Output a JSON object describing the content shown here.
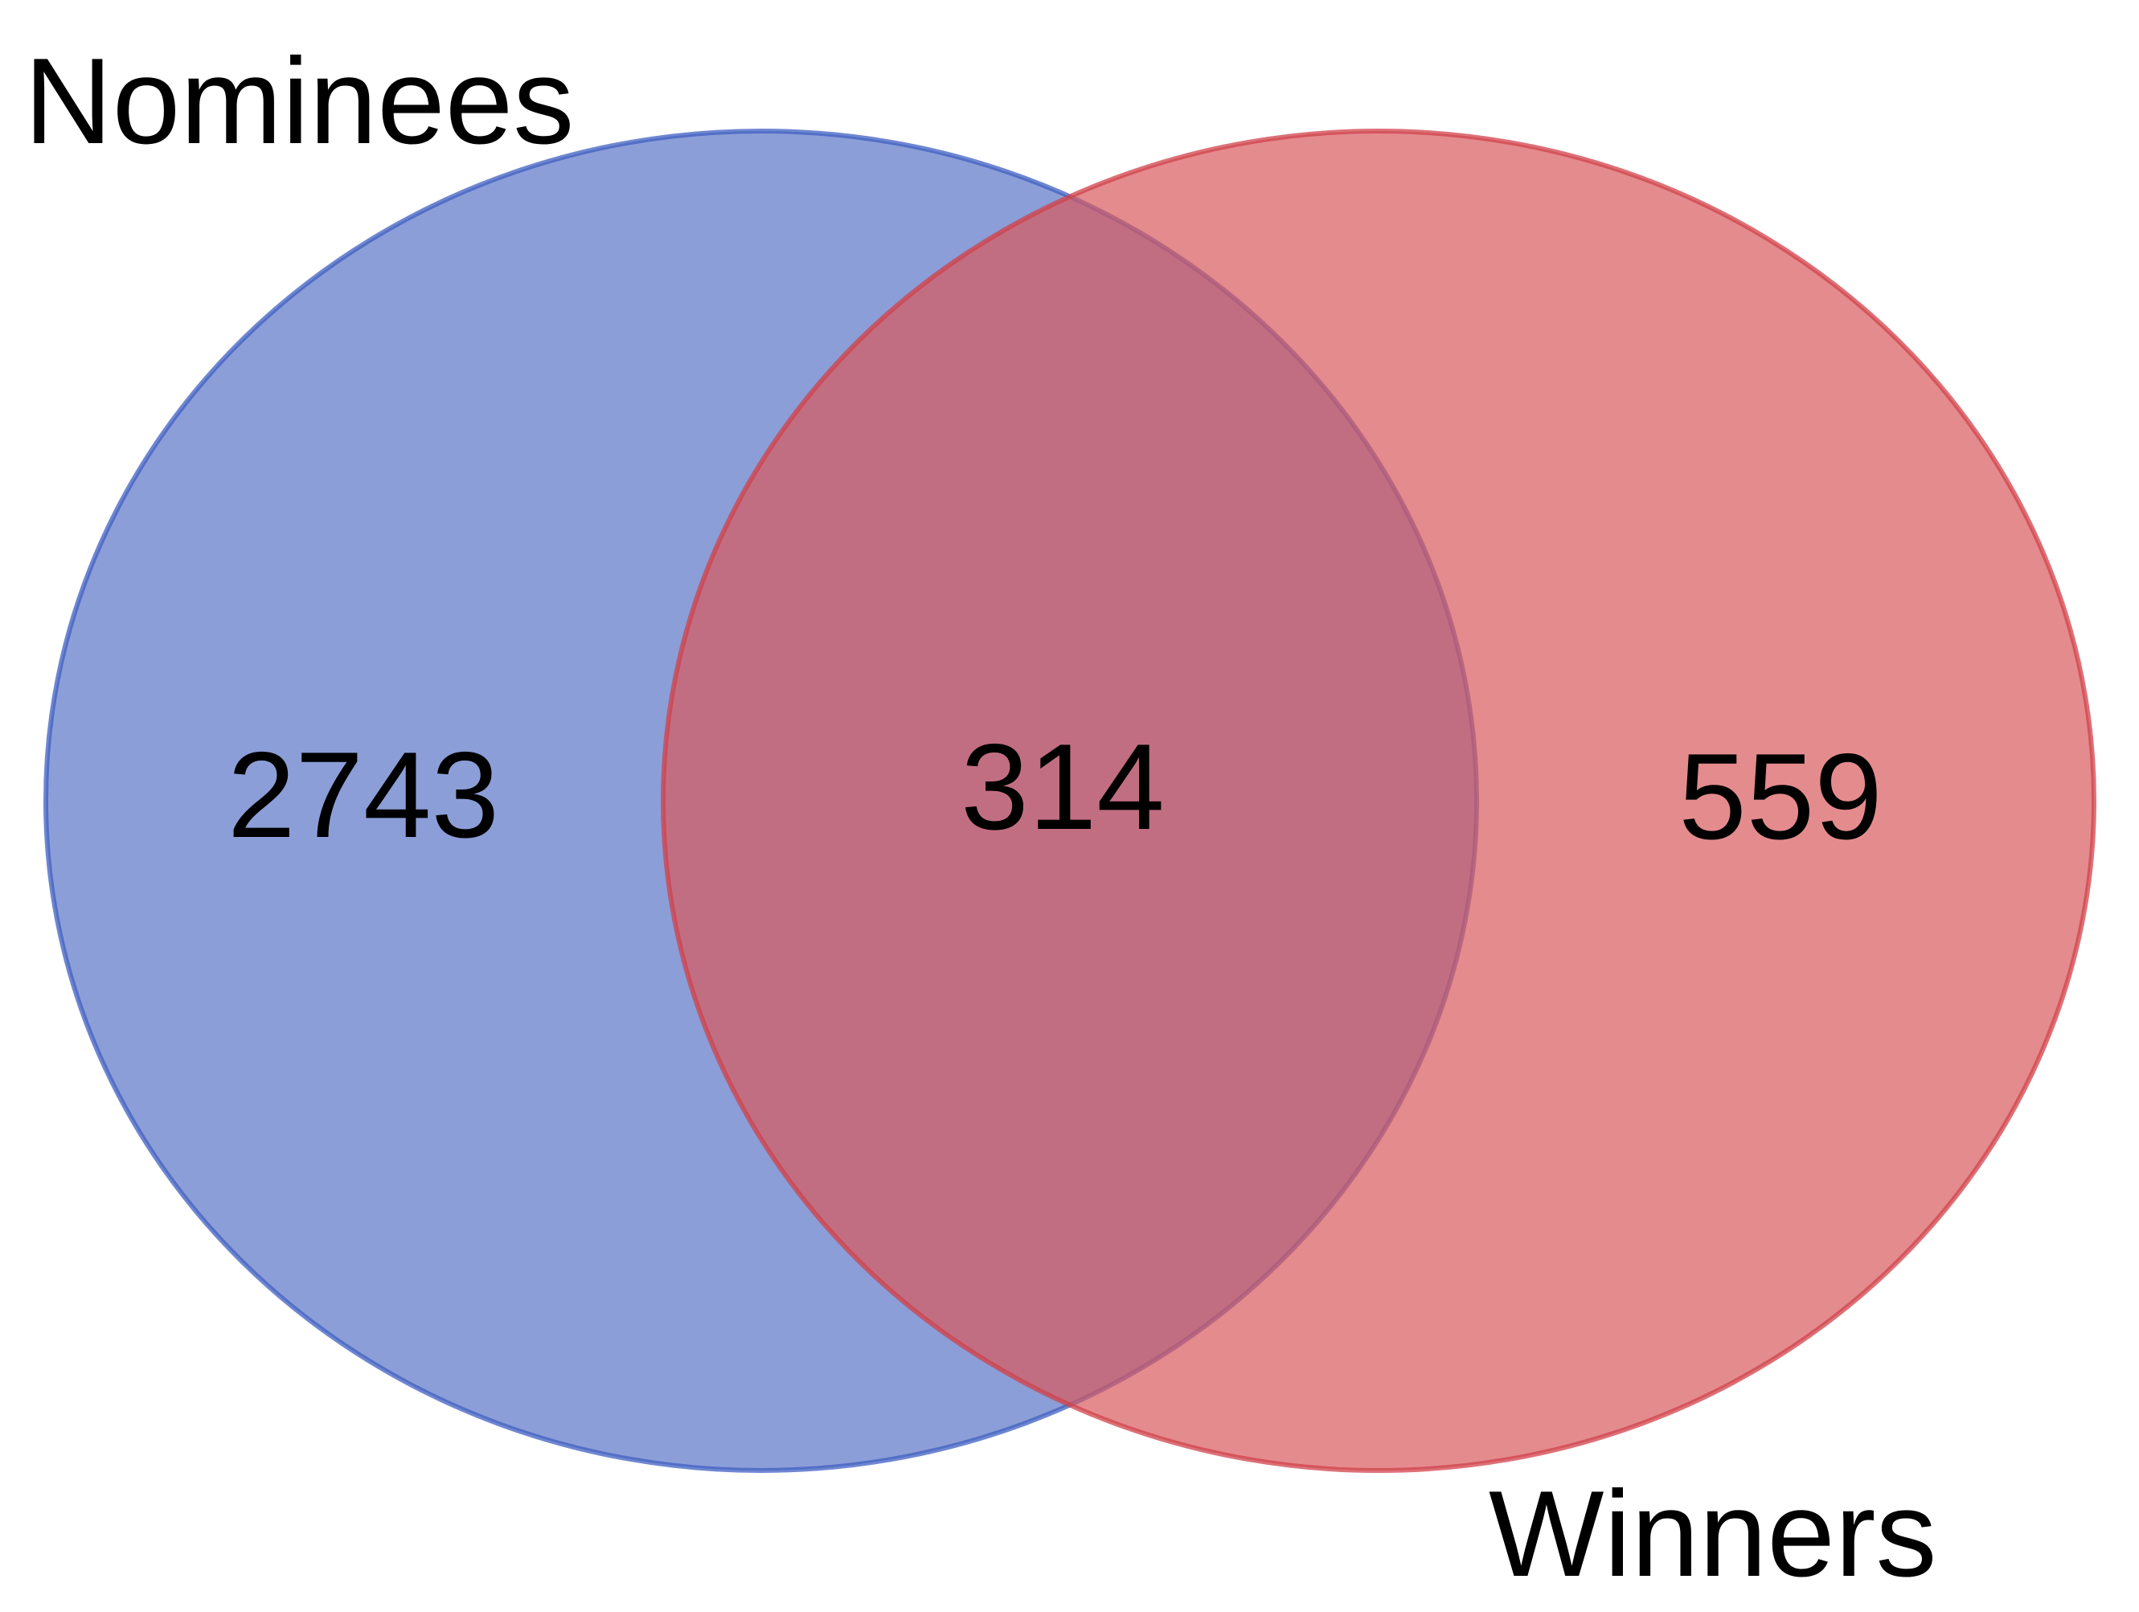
{
  "diagram": {
    "sets": [
      {
        "id": "nominees",
        "label": "Nominees",
        "fill": "#5670c4",
        "stroke": "#3f5fc2"
      },
      {
        "id": "winners",
        "label": "Winners",
        "fill": "#d85a5e",
        "stroke": "#d0424a"
      }
    ],
    "regions": {
      "nominees_only": "2743",
      "both": "314",
      "winners_only": "559"
    }
  }
}
